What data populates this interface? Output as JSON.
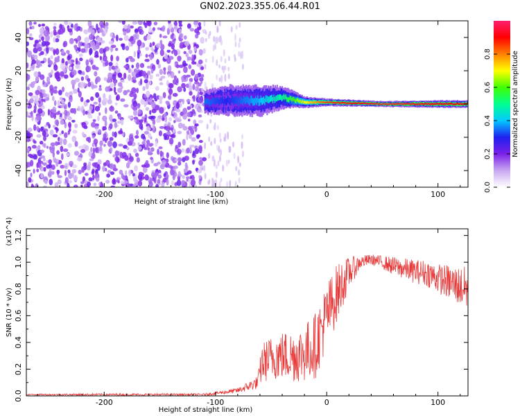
{
  "title": "GN02.2023.355.06.44.R01",
  "chart_data": [
    {
      "type": "heatmap",
      "xlabel": "Height of straight line (km)",
      "ylabel": "Frequency (Hz)",
      "xlim": [
        -270,
        127
      ],
      "ylim": [
        -50,
        50
      ],
      "x_ticks": [
        -200,
        -100,
        0,
        100
      ],
      "y_ticks": [
        -40,
        -20,
        0,
        20,
        40
      ],
      "colorbar": {
        "label": "Normalized spectral amplitude",
        "range": [
          0.0,
          1.0
        ],
        "ticks": [
          0.0,
          0.2,
          0.4,
          0.6,
          0.8
        ],
        "colors": [
          "#ffffff",
          "#c8a8f0",
          "#7b1fe8",
          "#2020f0",
          "#00c8ff",
          "#00ff90",
          "#40ff00",
          "#ffff00",
          "#ff8000",
          "#ff0000",
          "#ff2070"
        ]
      },
      "noise_region": {
        "x": [
          -270,
          -110
        ],
        "frequency_span": [
          -50,
          50
        ],
        "amplitude": 0.15
      },
      "sparse_region": {
        "x": [
          -110,
          -75
        ],
        "amplitude": 0.05
      },
      "signal_trace": [
        {
          "x": -110,
          "freq": 1,
          "width": 6,
          "amplitude": 0.35
        },
        {
          "x": -90,
          "freq": 2,
          "width": 8,
          "amplitude": 0.3
        },
        {
          "x": -60,
          "freq": 2,
          "width": 8,
          "amplitude": 0.4
        },
        {
          "x": -40,
          "freq": 4,
          "width": 6,
          "amplitude": 0.5
        },
        {
          "x": -20,
          "freq": 1,
          "width": 3,
          "amplitude": 0.7
        },
        {
          "x": 0,
          "freq": 1,
          "width": 2,
          "amplitude": 0.85
        },
        {
          "x": 50,
          "freq": 0,
          "width": 1.5,
          "amplitude": 0.95
        },
        {
          "x": 100,
          "freq": 0,
          "width": 2,
          "amplitude": 0.9
        },
        {
          "x": 127,
          "freq": 0,
          "width": 2,
          "amplitude": 0.9
        }
      ]
    },
    {
      "type": "line",
      "xlabel": "Height of straight line (km)",
      "ylabel": "SNR (10 * v/v)",
      "scale_label": "(x10^4)",
      "xlim": [
        -270,
        127
      ],
      "ylim": [
        0.0,
        1.25
      ],
      "x_ticks": [
        -200,
        -100,
        0,
        100
      ],
      "y_ticks": [
        0.0,
        0.2,
        0.4,
        0.6,
        0.8,
        1.0,
        1.2
      ],
      "color": "#e83a3a",
      "series": [
        {
          "x": [
            -270,
            -200,
            -110,
            -100,
            -80,
            -62,
            -58,
            -45,
            -30,
            -20,
            -10,
            0,
            10,
            20,
            30,
            40,
            50,
            60,
            70,
            80,
            90,
            100,
            110,
            120,
            127
          ],
          "y": [
            0.01,
            0.01,
            0.01,
            0.02,
            0.04,
            0.1,
            0.25,
            0.3,
            0.3,
            0.32,
            0.38,
            0.6,
            0.78,
            0.92,
            1.0,
            1.02,
            1.0,
            0.97,
            0.95,
            0.93,
            0.92,
            0.88,
            0.85,
            0.82,
            0.8
          ],
          "noise": [
            0.005,
            0.008,
            0.008,
            0.012,
            0.02,
            0.05,
            0.15,
            0.18,
            0.2,
            0.22,
            0.25,
            0.25,
            0.22,
            0.12,
            0.05,
            0.04,
            0.05,
            0.07,
            0.08,
            0.09,
            0.1,
            0.11,
            0.13,
            0.15,
            0.17
          ]
        }
      ]
    }
  ]
}
